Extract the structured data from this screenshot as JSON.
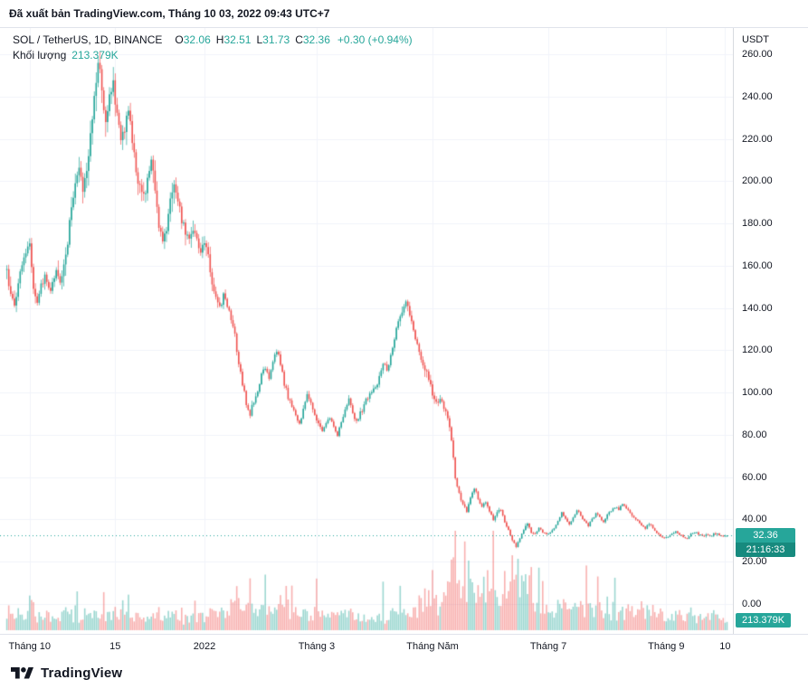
{
  "header": {
    "published_text": "Đã xuất bản TradingView.com, Tháng 10 03, 2022 09:43 UTC+7"
  },
  "legend": {
    "symbol_title": "SOL / TetherUS, 1D, BINANCE",
    "ohlc": {
      "o_label": "O",
      "o_value": "32.06",
      "h_label": "H",
      "h_value": "32.51",
      "l_label": "L",
      "l_value": "31.73",
      "c_label": "C",
      "c_value": "32.36",
      "change": "+0.30 (+0.94%)"
    },
    "volume_label": "Khối lượng",
    "volume_value": "213.379K"
  },
  "price_axis": {
    "currency": "USDT",
    "ticks": [
      {
        "v": 260,
        "label": "260.00"
      },
      {
        "v": 240,
        "label": "240.00"
      },
      {
        "v": 220,
        "label": "220.00"
      },
      {
        "v": 200,
        "label": "200.00"
      },
      {
        "v": 180,
        "label": "180.00"
      },
      {
        "v": 160,
        "label": "160.00"
      },
      {
        "v": 140,
        "label": "140.00"
      },
      {
        "v": 120,
        "label": "120.00"
      },
      {
        "v": 100,
        "label": "100.00"
      },
      {
        "v": 80,
        "label": "80.00"
      },
      {
        "v": 60,
        "label": "60.00"
      },
      {
        "v": 40,
        "label": "40.00"
      },
      {
        "v": 20,
        "label": "20.00"
      },
      {
        "v": 0,
        "label": "0.00"
      }
    ],
    "last_price_badge": {
      "price": "32.36",
      "countdown": "21:16:33"
    },
    "volume_badge": "213.379K"
  },
  "time_axis": {
    "labels": [
      {
        "text": "Tháng 10",
        "day": 0
      },
      {
        "text": "15",
        "day": 45
      },
      {
        "text": "2022",
        "day": 92
      },
      {
        "text": "Tháng 3",
        "day": 151
      },
      {
        "text": "Tháng Năm",
        "day": 212
      },
      {
        "text": "Tháng 7",
        "day": 273
      },
      {
        "text": "Tháng 9",
        "day": 335
      },
      {
        "text": "10",
        "day": 366
      }
    ]
  },
  "footer": {
    "brand": "TradingView"
  },
  "colors": {
    "up": "#26a69a",
    "down": "#ef5350",
    "vol_up": "rgba(38,166,154,0.45)",
    "vol_down": "rgba(239,83,80,0.45)",
    "grid": "#f0f3fa",
    "badge": "#26a69a",
    "badge_countdown": "#178a7e",
    "text": "#131722"
  },
  "chart_data": {
    "type": "candlestick",
    "title": "SOL / TetherUS, 1D, BINANCE",
    "timeframe": "1D",
    "y_axis": {
      "currency": "USDT",
      "range": [
        0,
        270
      ],
      "tick_step": 20
    },
    "x_axis": {
      "visible_labels": [
        "Tháng 10",
        "15",
        "2022",
        "Tháng 3",
        "Tháng Năm",
        "Tháng 7",
        "Tháng 9",
        "10"
      ]
    },
    "last": {
      "open": 32.06,
      "high": 32.51,
      "low": 31.73,
      "close": 32.36,
      "volume": 213379
    },
    "last_price_line": 32.36,
    "note": "Daily SOL/USDT closes; day 0 = first day of Tháng 10 2021. Anchors sampled ~every 2 days from the plotted curve; intermediate daily candles interpolated.",
    "close_anchors": [
      [
        -12,
        158
      ],
      [
        -10,
        146
      ],
      [
        -8,
        140
      ],
      [
        -6,
        152
      ],
      [
        -4,
        162
      ],
      [
        -2,
        168
      ],
      [
        0,
        172
      ],
      [
        2,
        150
      ],
      [
        4,
        141
      ],
      [
        6,
        150
      ],
      [
        8,
        156
      ],
      [
        10,
        148
      ],
      [
        12,
        152
      ],
      [
        14,
        158
      ],
      [
        16,
        152
      ],
      [
        18,
        160
      ],
      [
        20,
        172
      ],
      [
        22,
        188
      ],
      [
        24,
        200
      ],
      [
        26,
        205
      ],
      [
        28,
        197
      ],
      [
        30,
        204
      ],
      [
        32,
        224
      ],
      [
        34,
        240
      ],
      [
        36,
        258
      ],
      [
        38,
        242
      ],
      [
        40,
        230
      ],
      [
        42,
        240
      ],
      [
        44,
        247
      ],
      [
        46,
        230
      ],
      [
        48,
        218
      ],
      [
        50,
        226
      ],
      [
        52,
        234
      ],
      [
        54,
        220
      ],
      [
        56,
        205
      ],
      [
        58,
        196
      ],
      [
        60,
        192
      ],
      [
        62,
        200
      ],
      [
        64,
        212
      ],
      [
        66,
        196
      ],
      [
        68,
        180
      ],
      [
        70,
        172
      ],
      [
        72,
        178
      ],
      [
        74,
        190
      ],
      [
        76,
        200
      ],
      [
        78,
        192
      ],
      [
        80,
        182
      ],
      [
        82,
        176
      ],
      [
        84,
        171
      ],
      [
        86,
        178
      ],
      [
        88,
        172
      ],
      [
        90,
        167
      ],
      [
        92,
        172
      ],
      [
        94,
        164
      ],
      [
        96,
        152
      ],
      [
        98,
        146
      ],
      [
        100,
        140
      ],
      [
        102,
        146
      ],
      [
        104,
        141
      ],
      [
        106,
        134
      ],
      [
        108,
        127
      ],
      [
        110,
        114
      ],
      [
        112,
        104
      ],
      [
        114,
        95
      ],
      [
        116,
        90
      ],
      [
        118,
        96
      ],
      [
        120,
        101
      ],
      [
        122,
        108
      ],
      [
        124,
        112
      ],
      [
        126,
        107
      ],
      [
        128,
        116
      ],
      [
        130,
        120
      ],
      [
        132,
        114
      ],
      [
        134,
        104
      ],
      [
        136,
        98
      ],
      [
        138,
        93
      ],
      [
        140,
        89
      ],
      [
        142,
        85
      ],
      [
        144,
        92
      ],
      [
        146,
        99
      ],
      [
        148,
        95
      ],
      [
        150,
        89
      ],
      [
        152,
        85
      ],
      [
        154,
        81
      ],
      [
        156,
        85
      ],
      [
        158,
        88
      ],
      [
        160,
        83
      ],
      [
        162,
        79
      ],
      [
        164,
        86
      ],
      [
        166,
        92
      ],
      [
        168,
        96
      ],
      [
        170,
        90
      ],
      [
        172,
        86
      ],
      [
        174,
        90
      ],
      [
        176,
        94
      ],
      [
        178,
        98
      ],
      [
        180,
        100
      ],
      [
        182,
        102
      ],
      [
        184,
        108
      ],
      [
        186,
        114
      ],
      [
        188,
        110
      ],
      [
        190,
        118
      ],
      [
        192,
        126
      ],
      [
        194,
        133
      ],
      [
        196,
        139
      ],
      [
        198,
        143
      ],
      [
        200,
        136
      ],
      [
        202,
        129
      ],
      [
        204,
        123
      ],
      [
        206,
        117
      ],
      [
        208,
        111
      ],
      [
        210,
        107
      ],
      [
        212,
        99
      ],
      [
        214,
        95
      ],
      [
        216,
        97
      ],
      [
        218,
        93
      ],
      [
        220,
        88
      ],
      [
        222,
        78
      ],
      [
        224,
        60
      ],
      [
        226,
        52
      ],
      [
        228,
        47
      ],
      [
        230,
        44
      ],
      [
        232,
        50
      ],
      [
        234,
        55
      ],
      [
        236,
        50
      ],
      [
        238,
        46
      ],
      [
        240,
        48
      ],
      [
        242,
        44
      ],
      [
        244,
        40
      ],
      [
        246,
        43
      ],
      [
        248,
        45
      ],
      [
        250,
        39
      ],
      [
        252,
        35
      ],
      [
        254,
        30
      ],
      [
        256,
        27
      ],
      [
        258,
        31
      ],
      [
        260,
        35
      ],
      [
        262,
        38
      ],
      [
        264,
        34
      ],
      [
        266,
        33
      ],
      [
        268,
        36
      ],
      [
        270,
        34
      ],
      [
        272,
        33
      ],
      [
        274,
        34
      ],
      [
        276,
        36
      ],
      [
        278,
        39
      ],
      [
        280,
        43
      ],
      [
        282,
        40
      ],
      [
        284,
        38
      ],
      [
        286,
        41
      ],
      [
        288,
        44
      ],
      [
        290,
        42
      ],
      [
        292,
        39
      ],
      [
        294,
        37
      ],
      [
        296,
        40
      ],
      [
        298,
        43
      ],
      [
        300,
        41
      ],
      [
        302,
        39
      ],
      [
        304,
        42
      ],
      [
        306,
        44
      ],
      [
        308,
        46
      ],
      [
        310,
        45
      ],
      [
        312,
        47
      ],
      [
        314,
        45
      ],
      [
        316,
        43
      ],
      [
        318,
        41
      ],
      [
        320,
        39
      ],
      [
        322,
        37
      ],
      [
        324,
        36
      ],
      [
        326,
        38
      ],
      [
        328,
        36
      ],
      [
        330,
        34
      ],
      [
        332,
        32
      ],
      [
        334,
        31
      ],
      [
        336,
        32
      ],
      [
        338,
        33
      ],
      [
        340,
        34
      ],
      [
        342,
        33
      ],
      [
        344,
        32
      ],
      [
        346,
        31
      ],
      [
        348,
        33
      ],
      [
        350,
        34
      ],
      [
        352,
        33
      ],
      [
        354,
        32
      ],
      [
        356,
        33
      ],
      [
        358,
        32
      ],
      [
        360,
        33
      ],
      [
        362,
        33
      ],
      [
        364,
        32.5
      ],
      [
        367,
        32.36
      ]
    ]
  }
}
